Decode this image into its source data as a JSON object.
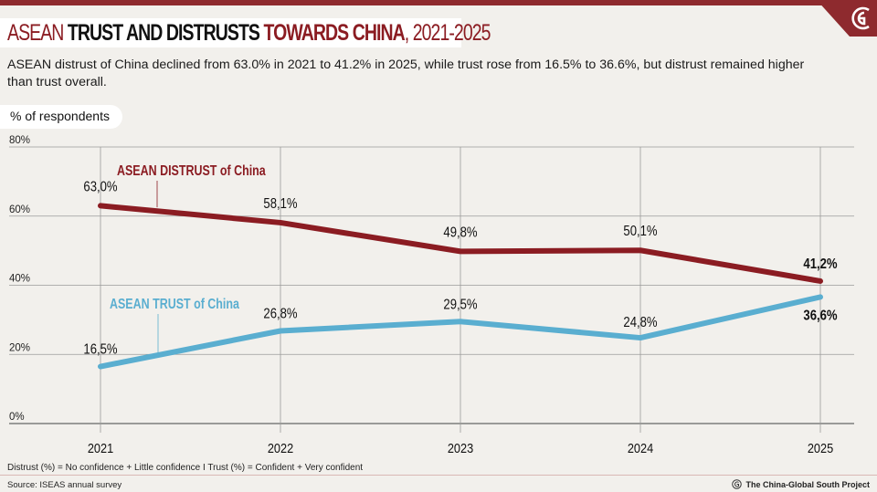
{
  "header": {
    "title_parts": [
      {
        "text": "ASEAN ",
        "style": "red"
      },
      {
        "text": "TRUST AND DISTRUSTS ",
        "style": "black"
      },
      {
        "text": "TOWARDS CHINA",
        "style": "red-bold"
      },
      {
        "text": ", 2021-2025",
        "style": "red"
      }
    ],
    "subtitle": "ASEAN distrust of China declined from 63.0% in 2021 to 41.2% in 2025, while trust rose from 16.5% to 36.6%, but distrust remained higher than trust overall.",
    "unit_label": "% of respondents",
    "logo": "china-global-south-logo-icon"
  },
  "colors": {
    "brand": "#8e2a2e",
    "distrust": "#8b1c22",
    "trust": "#5aaed0",
    "grid": "#9a9a9a",
    "background": "#f2f0ec"
  },
  "chart_data": {
    "type": "line",
    "title": "ASEAN TRUST AND DISTRUSTS TOWARDS CHINA, 2021-2025",
    "xlabel": "",
    "ylabel": "% of respondents",
    "x": [
      "2021",
      "2022",
      "2023",
      "2024",
      "2025"
    ],
    "ylim": [
      0,
      80
    ],
    "yticks": [
      0,
      20,
      40,
      60,
      80
    ],
    "ytick_labels": [
      "0%",
      "20%",
      "40%",
      "60%",
      "80%"
    ],
    "grid": true,
    "series": [
      {
        "name": "ASEAN DISTRUST of China",
        "values": [
          63.0,
          58.1,
          49.8,
          50.1,
          41.2
        ],
        "labels": [
          "63,0%",
          "58,1%",
          "49,8%",
          "50,1%",
          "41,2%"
        ]
      },
      {
        "name": "ASEAN TRUST of China",
        "values": [
          16.5,
          26.8,
          29.5,
          24.8,
          36.6
        ],
        "labels": [
          "16,5%",
          "26,8%",
          "29,5%",
          "24,8%",
          "36,6%"
        ]
      }
    ]
  },
  "footer": {
    "note": "Distrust (%) = No confidence + Little confidence I Trust (%) = Confident + Very confident",
    "source": "Source: ISEAS annual survey",
    "brand": "The China-Global South Project"
  }
}
